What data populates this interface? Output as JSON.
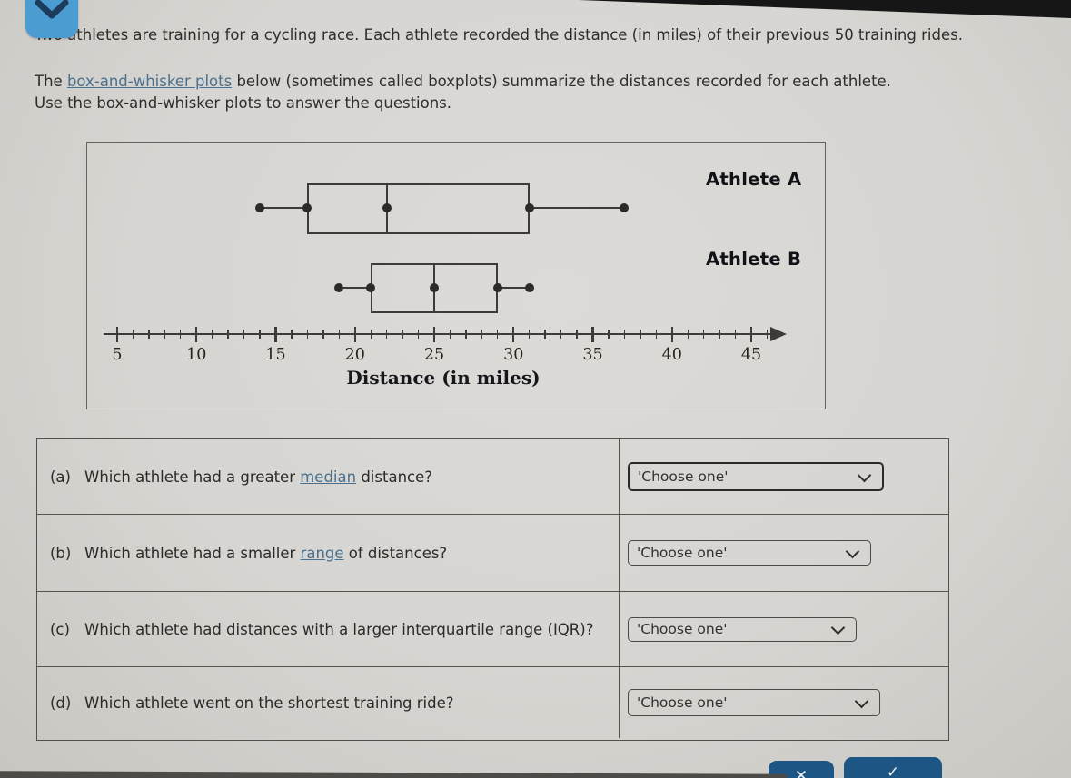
{
  "page": {
    "intro_line1": "Two athletes are training for a cycling race. Each athlete recorded the distance (in miles) of their previous 50 training rides.",
    "intro_p2_before": "The ",
    "intro_p2_link": "box-and-whisker plots",
    "intro_p2_after": " below (sometimes called boxplots) summarize the distances recorded for each athlete.",
    "intro_line3": "Use the box-and-whisker plots to answer the questions."
  },
  "chart_data": {
    "type": "boxplot",
    "xlabel": "Distance (in miles)",
    "axis_ticks": [
      5,
      10,
      15,
      20,
      25,
      30,
      35,
      40,
      45
    ],
    "axis_range": [
      5,
      46
    ],
    "minor_tick_step": 1,
    "grid": false,
    "series": [
      {
        "name": "Athlete A",
        "min": 14,
        "q1": 17,
        "median": 22,
        "q3": 31,
        "max": 37
      },
      {
        "name": "Athlete B",
        "min": 19,
        "q1": 21,
        "median": 25,
        "q3": 29,
        "max": 31
      }
    ]
  },
  "questions": [
    {
      "label": "(a)",
      "before": "Which athlete had a greater ",
      "link": "median",
      "after": " distance?",
      "dropdown_value": "'Choose one'"
    },
    {
      "label": "(b)",
      "before": "Which athlete had a smaller ",
      "link": "range",
      "after": " of distances?",
      "dropdown_value": "'Choose one'"
    },
    {
      "label": "(c)",
      "before": "Which athlete had distances with a larger interquartile range (IQR)?",
      "link": "",
      "after": "",
      "dropdown_value": "'Choose one'"
    },
    {
      "label": "(d)",
      "before": "Which athlete went on the shortest training ride?",
      "link": "",
      "after": "",
      "dropdown_value": "'Choose one'"
    }
  ],
  "footer": {
    "clear_glyph": "✕",
    "check_glyph": "✓"
  },
  "colors": {
    "background": "#d7d5d1",
    "text": "#2e2d2a",
    "link": "#49708e",
    "plot_stroke": "#3c3b38",
    "badge_blue": "#4a9cd1",
    "button_blue": "#1d5584"
  }
}
